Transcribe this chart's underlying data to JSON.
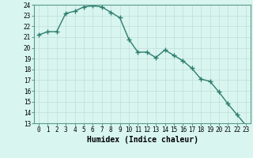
{
  "x": [
    0,
    1,
    2,
    3,
    4,
    5,
    6,
    7,
    8,
    9,
    10,
    11,
    12,
    13,
    14,
    15,
    16,
    17,
    18,
    19,
    20,
    21,
    22,
    23
  ],
  "y": [
    21.2,
    21.5,
    21.5,
    23.2,
    23.4,
    23.8,
    23.9,
    23.8,
    23.3,
    22.8,
    20.8,
    19.6,
    19.6,
    19.1,
    19.8,
    19.3,
    18.8,
    18.1,
    17.1,
    16.9,
    15.9,
    14.8,
    13.8,
    12.8
  ],
  "line_color": "#2e7d6e",
  "marker_color": "#2e7d6e",
  "bg_color": "#d8f5f0",
  "grid_color": "#c0ddd8",
  "grid_color_minor": "#ddeee8",
  "xlabel": "Humidex (Indice chaleur)",
  "ylim": [
    13,
    24
  ],
  "xlim": [
    -0.5,
    23.5
  ],
  "yticks": [
    13,
    14,
    15,
    16,
    17,
    18,
    19,
    20,
    21,
    22,
    23,
    24
  ],
  "xticks": [
    0,
    1,
    2,
    3,
    4,
    5,
    6,
    7,
    8,
    9,
    10,
    11,
    12,
    13,
    14,
    15,
    16,
    17,
    18,
    19,
    20,
    21,
    22,
    23
  ],
  "tick_fontsize": 5.5,
  "label_fontsize": 7,
  "linewidth": 1.0,
  "markersize": 2.5
}
